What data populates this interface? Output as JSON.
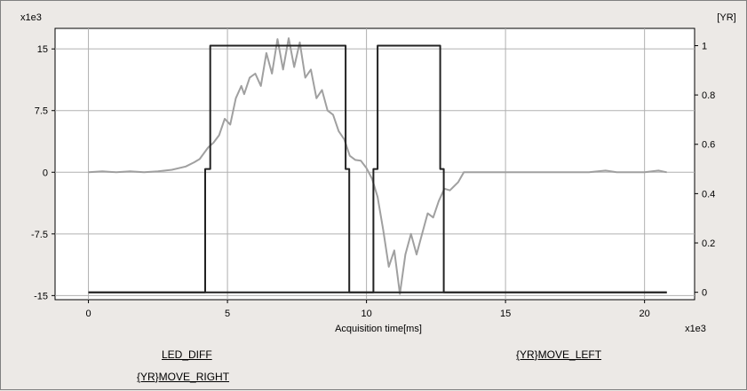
{
  "chart_data": {
    "type": "line",
    "xlabel": "Acquisition time[ms]",
    "x_multiplier": "x1e3",
    "y_left_multiplier": "x1e3",
    "y_right_unit": "[YR]",
    "xlim": [
      -1.2,
      21.8
    ],
    "ylim_left": [
      -15.5,
      17.5
    ],
    "ylim_right": [
      -0.03,
      1.07
    ],
    "x_ticks": [
      "0",
      "5",
      "10",
      "15",
      "20"
    ],
    "x_tick_values": [
      0,
      5,
      10,
      15,
      20
    ],
    "y_left_ticks": [
      "15",
      "7.5",
      "0",
      "-7.5",
      "-15"
    ],
    "y_left_tick_values": [
      15,
      7.5,
      0,
      -7.5,
      -15
    ],
    "y_right_ticks": [
      "1",
      "0.8",
      "0.6",
      "0.4",
      "0.2",
      "0"
    ],
    "y_right_tick_values": [
      1,
      0.8,
      0.6,
      0.4,
      0.2,
      0
    ],
    "grid": true,
    "series": [
      {
        "name": "LED_DIFF",
        "axis": "left",
        "color": "#a0a0a0",
        "points": [
          [
            0,
            0
          ],
          [
            0.5,
            0.1
          ],
          [
            1,
            0
          ],
          [
            1.5,
            0.1
          ],
          [
            2,
            0
          ],
          [
            2.5,
            0.1
          ],
          [
            3,
            0.3
          ],
          [
            3.5,
            0.7
          ],
          [
            3.8,
            1.2
          ],
          [
            4,
            1.6
          ],
          [
            4.3,
            3
          ],
          [
            4.5,
            3.6
          ],
          [
            4.7,
            4.5
          ],
          [
            4.9,
            6.5
          ],
          [
            5.1,
            5.8
          ],
          [
            5.3,
            9
          ],
          [
            5.5,
            10.5
          ],
          [
            5.6,
            9.5
          ],
          [
            5.8,
            11.5
          ],
          [
            6,
            12
          ],
          [
            6.2,
            10.5
          ],
          [
            6.4,
            14.5
          ],
          [
            6.6,
            12
          ],
          [
            6.8,
            16.2
          ],
          [
            7,
            12.5
          ],
          [
            7.2,
            16.3
          ],
          [
            7.4,
            12.8
          ],
          [
            7.6,
            15.8
          ],
          [
            7.8,
            11.5
          ],
          [
            8,
            12.5
          ],
          [
            8.2,
            9
          ],
          [
            8.4,
            10
          ],
          [
            8.6,
            7.5
          ],
          [
            8.8,
            7
          ],
          [
            9,
            5
          ],
          [
            9.2,
            4
          ],
          [
            9.4,
            2
          ],
          [
            9.6,
            1.5
          ],
          [
            9.8,
            1.4
          ],
          [
            10,
            0.5
          ],
          [
            10.2,
            -0.8
          ],
          [
            10.4,
            -3
          ],
          [
            10.6,
            -7
          ],
          [
            10.8,
            -11.5
          ],
          [
            11,
            -9.5
          ],
          [
            11.2,
            -14.8
          ],
          [
            11.4,
            -10
          ],
          [
            11.6,
            -7.5
          ],
          [
            11.8,
            -10
          ],
          [
            12,
            -7.5
          ],
          [
            12.2,
            -5
          ],
          [
            12.4,
            -5.5
          ],
          [
            12.6,
            -3.5
          ],
          [
            12.8,
            -2
          ],
          [
            13,
            -2.2
          ],
          [
            13.3,
            -1.2
          ],
          [
            13.5,
            0
          ],
          [
            14,
            0
          ],
          [
            15,
            0
          ],
          [
            16,
            0
          ],
          [
            17,
            0
          ],
          [
            18,
            0
          ],
          [
            18.6,
            0.2
          ],
          [
            19,
            0
          ],
          [
            19.5,
            0
          ],
          [
            20,
            0
          ],
          [
            20.5,
            0.2
          ],
          [
            20.8,
            0
          ]
        ]
      },
      {
        "name": "{YR}MOVE_RIGHT",
        "axis": "right",
        "color": "#222222",
        "points": [
          [
            0,
            0
          ],
          [
            4.2,
            0
          ],
          [
            4.2,
            0.5
          ],
          [
            4.38,
            0.5
          ],
          [
            4.38,
            1
          ],
          [
            9.25,
            1
          ],
          [
            9.25,
            0.5
          ],
          [
            9.38,
            0.5
          ],
          [
            9.38,
            0
          ],
          [
            20.8,
            0
          ]
        ]
      },
      {
        "name": "{YR}MOVE_LEFT",
        "axis": "right",
        "color": "#222222",
        "points": [
          [
            0,
            0
          ],
          [
            10.25,
            0
          ],
          [
            10.25,
            0.5
          ],
          [
            10.4,
            0.5
          ],
          [
            10.4,
            1
          ],
          [
            12.65,
            1
          ],
          [
            12.65,
            0.5
          ],
          [
            12.78,
            0.5
          ],
          [
            12.78,
            0
          ],
          [
            20.8,
            0
          ]
        ]
      }
    ],
    "legend": [
      "LED_DIFF",
      "{YR}MOVE_RIGHT",
      "{YR}MOVE_LEFT"
    ]
  }
}
